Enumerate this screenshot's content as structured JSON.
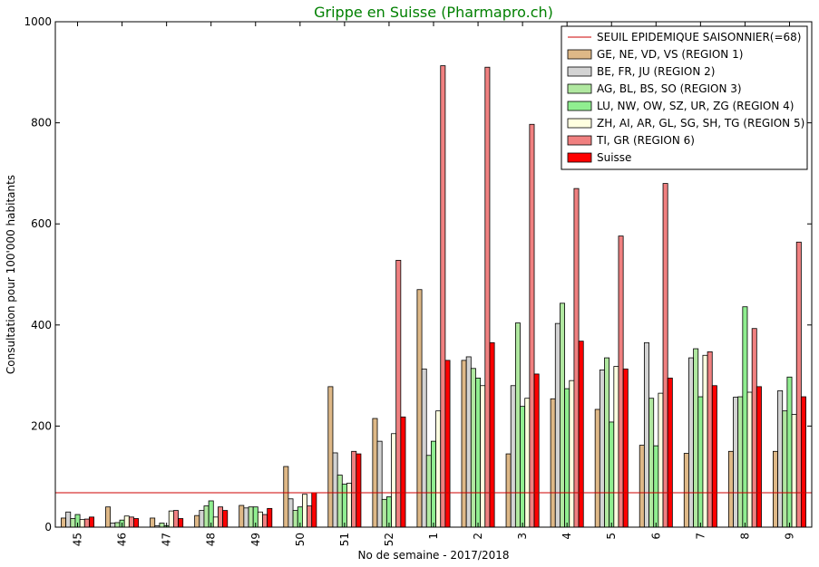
{
  "chart_data": {
    "type": "bar",
    "title": "Grippe en Suisse (Pharmapro.ch)",
    "title_color": "#008000",
    "xlabel": "No de semaine - 2017/2018",
    "ylabel": "Consultation pour 100'000 habitants",
    "ylim": [
      0,
      1000
    ],
    "yticks": [
      0,
      200,
      400,
      600,
      800,
      1000
    ],
    "grid": false,
    "legend_position": "top-right",
    "categories": [
      "45",
      "46",
      "47",
      "48",
      "49",
      "50",
      "51",
      "52",
      "1",
      "2",
      "3",
      "4",
      "5",
      "6",
      "7",
      "8",
      "9"
    ],
    "threshold": {
      "name": "SEUIL EPIDEMIQUE SAISONNIER(=68)",
      "value": 68,
      "color": "#cc0000"
    },
    "series": [
      {
        "name": "GE, NE, VD, VS (REGION 1)",
        "color": "#deb887",
        "values": [
          18,
          40,
          18,
          23,
          43,
          120,
          278,
          215,
          470,
          330,
          145,
          254,
          233,
          162,
          146,
          150,
          150
        ]
      },
      {
        "name": "BE, FR, JU (REGION 2)",
        "color": "#d3d3d3",
        "values": [
          30,
          8,
          3,
          33,
          38,
          56,
          147,
          170,
          313,
          337,
          280,
          403,
          311,
          365,
          335,
          257,
          270
        ]
      },
      {
        "name": "AG, BL, BS, SO (REGION 3)",
        "color": "#b0e8a0",
        "values": [
          17,
          9,
          8,
          42,
          40,
          33,
          103,
          55,
          142,
          314,
          404,
          443,
          335,
          255,
          353,
          258,
          230
        ]
      },
      {
        "name": "LU, NW, OW, SZ, UR, ZG (REGION 4)",
        "color": "#90ee90",
        "values": [
          25,
          14,
          3,
          52,
          40,
          40,
          85,
          60,
          170,
          295,
          239,
          274,
          208,
          161,
          258,
          436,
          297
        ]
      },
      {
        "name": "ZH, AI, AR, GL, SG, SH, TG (REGION 5)",
        "color": "#ffffe0",
        "values": [
          15,
          22,
          32,
          20,
          30,
          65,
          87,
          185,
          230,
          280,
          255,
          290,
          318,
          265,
          340,
          267,
          223
        ]
      },
      {
        "name": "TI, GR (REGION 6)",
        "color": "#f08080",
        "values": [
          16,
          20,
          33,
          40,
          25,
          42,
          150,
          528,
          913,
          910,
          797,
          670,
          576,
          680,
          347,
          393,
          564
        ]
      },
      {
        "name": "Suisse",
        "color": "#ff0000",
        "values": [
          20,
          17,
          17,
          33,
          37,
          68,
          145,
          218,
          330,
          365,
          303,
          368,
          313,
          295,
          280,
          278,
          258
        ]
      }
    ]
  }
}
